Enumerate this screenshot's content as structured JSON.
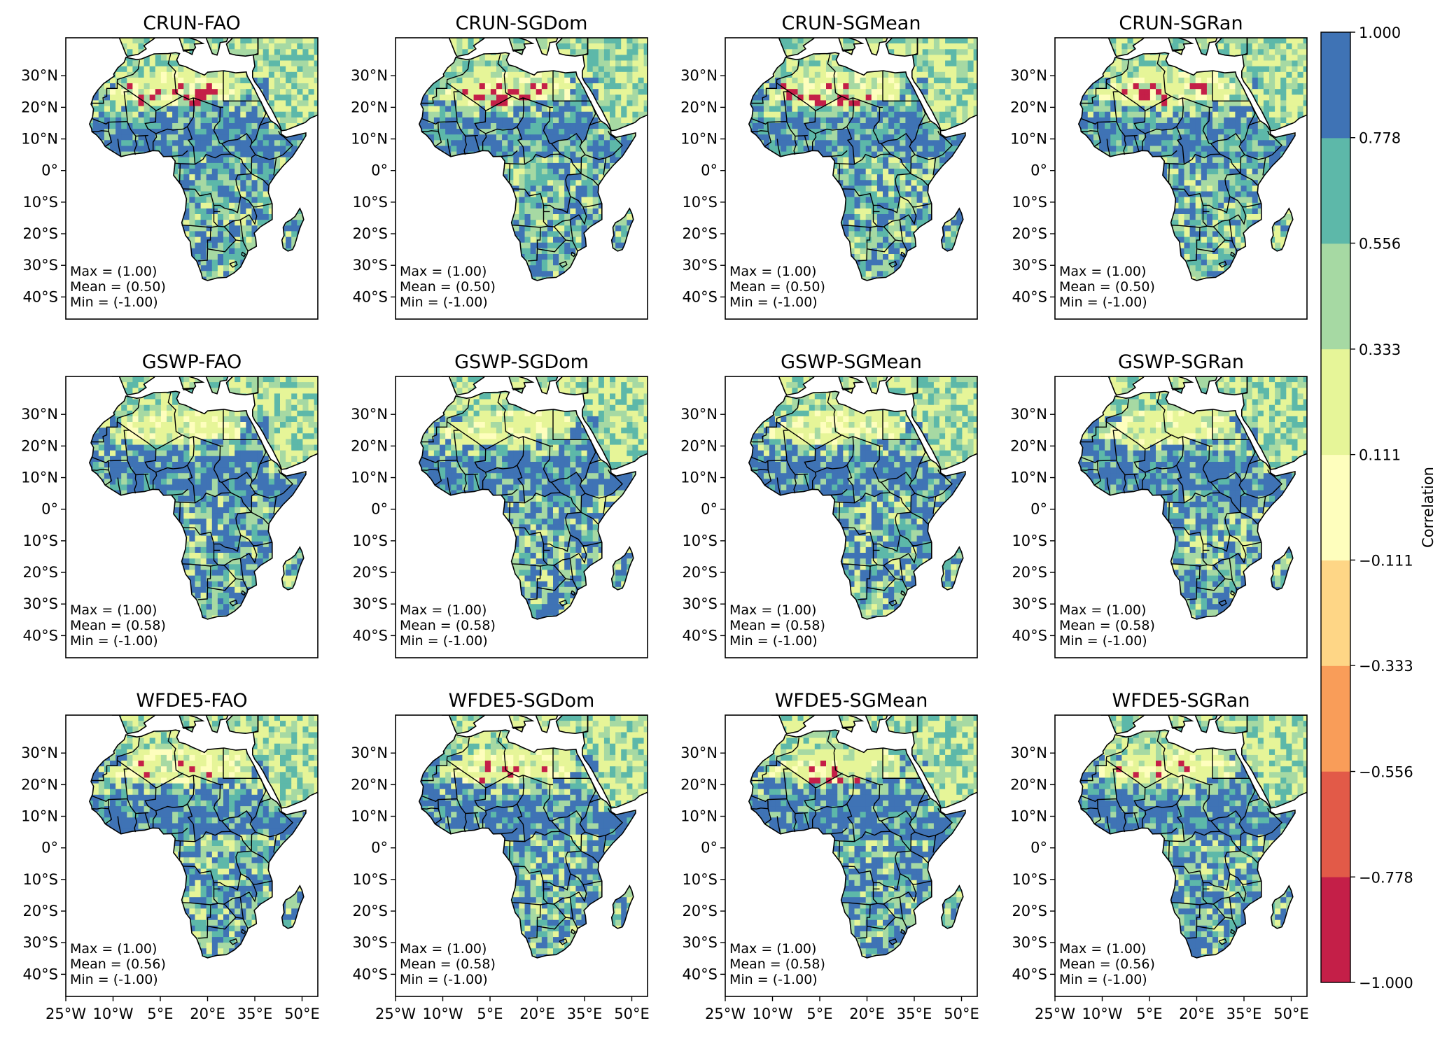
{
  "figure": {
    "panels": [
      {
        "title": "CRUN-FAO",
        "max": "Max = (1.00)",
        "mean": "Mean = (0.50)",
        "min": "Min = (-1.00)",
        "mean_value": 0.5
      },
      {
        "title": "CRUN-SGDom",
        "max": "Max = (1.00)",
        "mean": "Mean = (0.50)",
        "min": "Min = (-1.00)",
        "mean_value": 0.5
      },
      {
        "title": "CRUN-SGMean",
        "max": "Max = (1.00)",
        "mean": "Mean = (0.50)",
        "min": "Min = (-1.00)",
        "mean_value": 0.5
      },
      {
        "title": "CRUN-SGRan",
        "max": "Max = (1.00)",
        "mean": "Mean = (0.50)",
        "min": "Min = (-1.00)",
        "mean_value": 0.5
      },
      {
        "title": "GSWP-FAO",
        "max": "Max = (1.00)",
        "mean": "Mean = (0.58)",
        "min": "Min = (-1.00)",
        "mean_value": 0.58
      },
      {
        "title": "GSWP-SGDom",
        "max": "Max = (1.00)",
        "mean": "Mean = (0.58)",
        "min": "Min = (-1.00)",
        "mean_value": 0.58
      },
      {
        "title": "GSWP-SGMean",
        "max": "Max = (1.00)",
        "mean": "Mean = (0.58)",
        "min": "Min = (-1.00)",
        "mean_value": 0.58
      },
      {
        "title": "GSWP-SGRan",
        "max": "Max = (1.00)",
        "mean": "Mean = (0.58)",
        "min": "Min = (-1.00)",
        "mean_value": 0.58
      },
      {
        "title": "WFDE5-FAO",
        "max": "Max = (1.00)",
        "mean": "Mean = (0.56)",
        "min": "Min = (-1.00)",
        "mean_value": 0.56
      },
      {
        "title": "WFDE5-SGDom",
        "max": "Max = (1.00)",
        "mean": "Mean = (0.58)",
        "min": "Min = (-1.00)",
        "mean_value": 0.58
      },
      {
        "title": "WFDE5-SGMean",
        "max": "Max = (1.00)",
        "mean": "Mean = (0.58)",
        "min": "Min = (-1.00)",
        "mean_value": 0.58
      },
      {
        "title": "WFDE5-SGRan",
        "max": "Max = (1.00)",
        "mean": "Mean = (0.56)",
        "min": "Min = (-1.00)",
        "mean_value": 0.56
      }
    ],
    "lat_ticks": [
      "30°N",
      "20°N",
      "10°N",
      "0°",
      "10°S",
      "20°S",
      "30°S",
      "40°S"
    ],
    "lat_values": [
      30,
      20,
      10,
      0,
      -10,
      -20,
      -30,
      -40
    ],
    "lon_ticks": [
      "25°W",
      "10°W",
      "5°E",
      "20°E",
      "35°E",
      "50°E"
    ],
    "lon_values": [
      -25,
      -10,
      5,
      20,
      35,
      50
    ],
    "lon_range": [
      -25,
      55
    ],
    "lat_range": [
      -47,
      42
    ],
    "colorbar": {
      "label": "Correlation",
      "ticks": [
        "1.000",
        "0.778",
        "0.556",
        "0.333",
        "0.111",
        "−0.111",
        "−0.333",
        "−0.556",
        "−0.778",
        "−1.000"
      ],
      "tick_values": [
        1.0,
        0.778,
        0.556,
        0.333,
        0.111,
        -0.111,
        -0.333,
        -0.556,
        -0.778,
        -1.0
      ],
      "colors": [
        "#c41f48",
        "#e25a48",
        "#f99d59",
        "#fed686",
        "#fefebd",
        "#e6f598",
        "#a6d9a3",
        "#5db8a9",
        "#3f73b5"
      ]
    }
  }
}
